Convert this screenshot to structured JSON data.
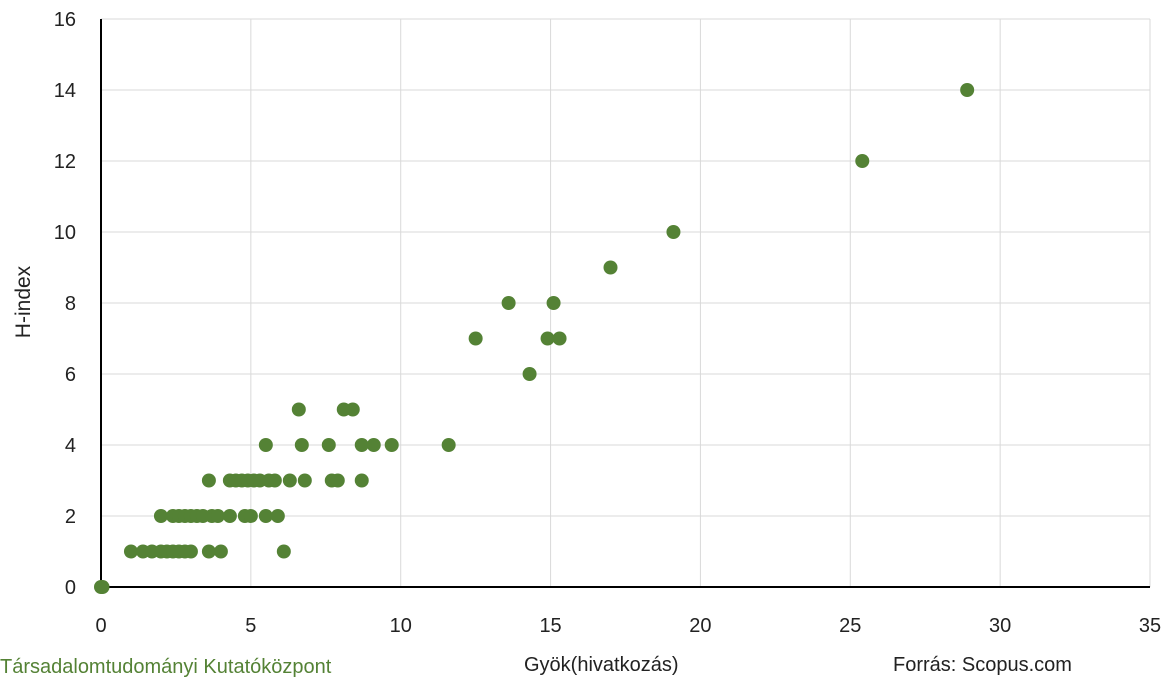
{
  "chart_data": {
    "type": "scatter",
    "title": "",
    "xlabel": "Gyök(hivatkozás)",
    "ylabel": "H-index",
    "xlim": [
      0,
      35
    ],
    "ylim": [
      0,
      16
    ],
    "x_ticks": [
      0,
      5,
      10,
      15,
      20,
      25,
      30,
      35
    ],
    "y_ticks": [
      0,
      2,
      4,
      6,
      8,
      10,
      12,
      14,
      16
    ],
    "grid": true,
    "marker_color": "#548235",
    "points": [
      [
        0,
        0
      ],
      [
        0.05,
        0
      ],
      [
        1.0,
        1
      ],
      [
        1.4,
        1
      ],
      [
        1.7,
        1
      ],
      [
        2.0,
        1
      ],
      [
        2.2,
        1
      ],
      [
        2.4,
        1
      ],
      [
        2.6,
        1
      ],
      [
        2.8,
        1
      ],
      [
        3.0,
        1
      ],
      [
        3.6,
        1
      ],
      [
        4.0,
        1
      ],
      [
        6.1,
        1
      ],
      [
        2.0,
        2
      ],
      [
        2.4,
        2
      ],
      [
        2.6,
        2
      ],
      [
        2.8,
        2
      ],
      [
        3.0,
        2
      ],
      [
        3.2,
        2
      ],
      [
        3.4,
        2
      ],
      [
        3.7,
        2
      ],
      [
        3.9,
        2
      ],
      [
        4.3,
        2
      ],
      [
        4.8,
        2
      ],
      [
        5.0,
        2
      ],
      [
        5.5,
        2
      ],
      [
        5.9,
        2
      ],
      [
        3.6,
        3
      ],
      [
        4.3,
        3
      ],
      [
        4.5,
        3
      ],
      [
        4.7,
        3
      ],
      [
        4.9,
        3
      ],
      [
        5.1,
        3
      ],
      [
        5.3,
        3
      ],
      [
        5.6,
        3
      ],
      [
        5.8,
        3
      ],
      [
        6.3,
        3
      ],
      [
        6.8,
        3
      ],
      [
        7.7,
        3
      ],
      [
        7.9,
        3
      ],
      [
        8.7,
        3
      ],
      [
        5.5,
        4
      ],
      [
        6.7,
        4
      ],
      [
        7.6,
        4
      ],
      [
        8.7,
        4
      ],
      [
        9.1,
        4
      ],
      [
        9.7,
        4
      ],
      [
        11.6,
        4
      ],
      [
        6.6,
        5
      ],
      [
        8.1,
        5
      ],
      [
        8.4,
        5
      ],
      [
        14.3,
        6
      ],
      [
        12.5,
        7
      ],
      [
        14.9,
        7
      ],
      [
        15.3,
        7
      ],
      [
        13.6,
        8
      ],
      [
        15.1,
        8
      ],
      [
        17.0,
        9
      ],
      [
        19.1,
        10
      ],
      [
        25.4,
        12
      ],
      [
        28.9,
        14
      ]
    ]
  },
  "footer": {
    "institution": "Társadalomtudományi Kutatóközpont",
    "institution_color": "#548235",
    "source": "Forrás: Scopus.com"
  }
}
